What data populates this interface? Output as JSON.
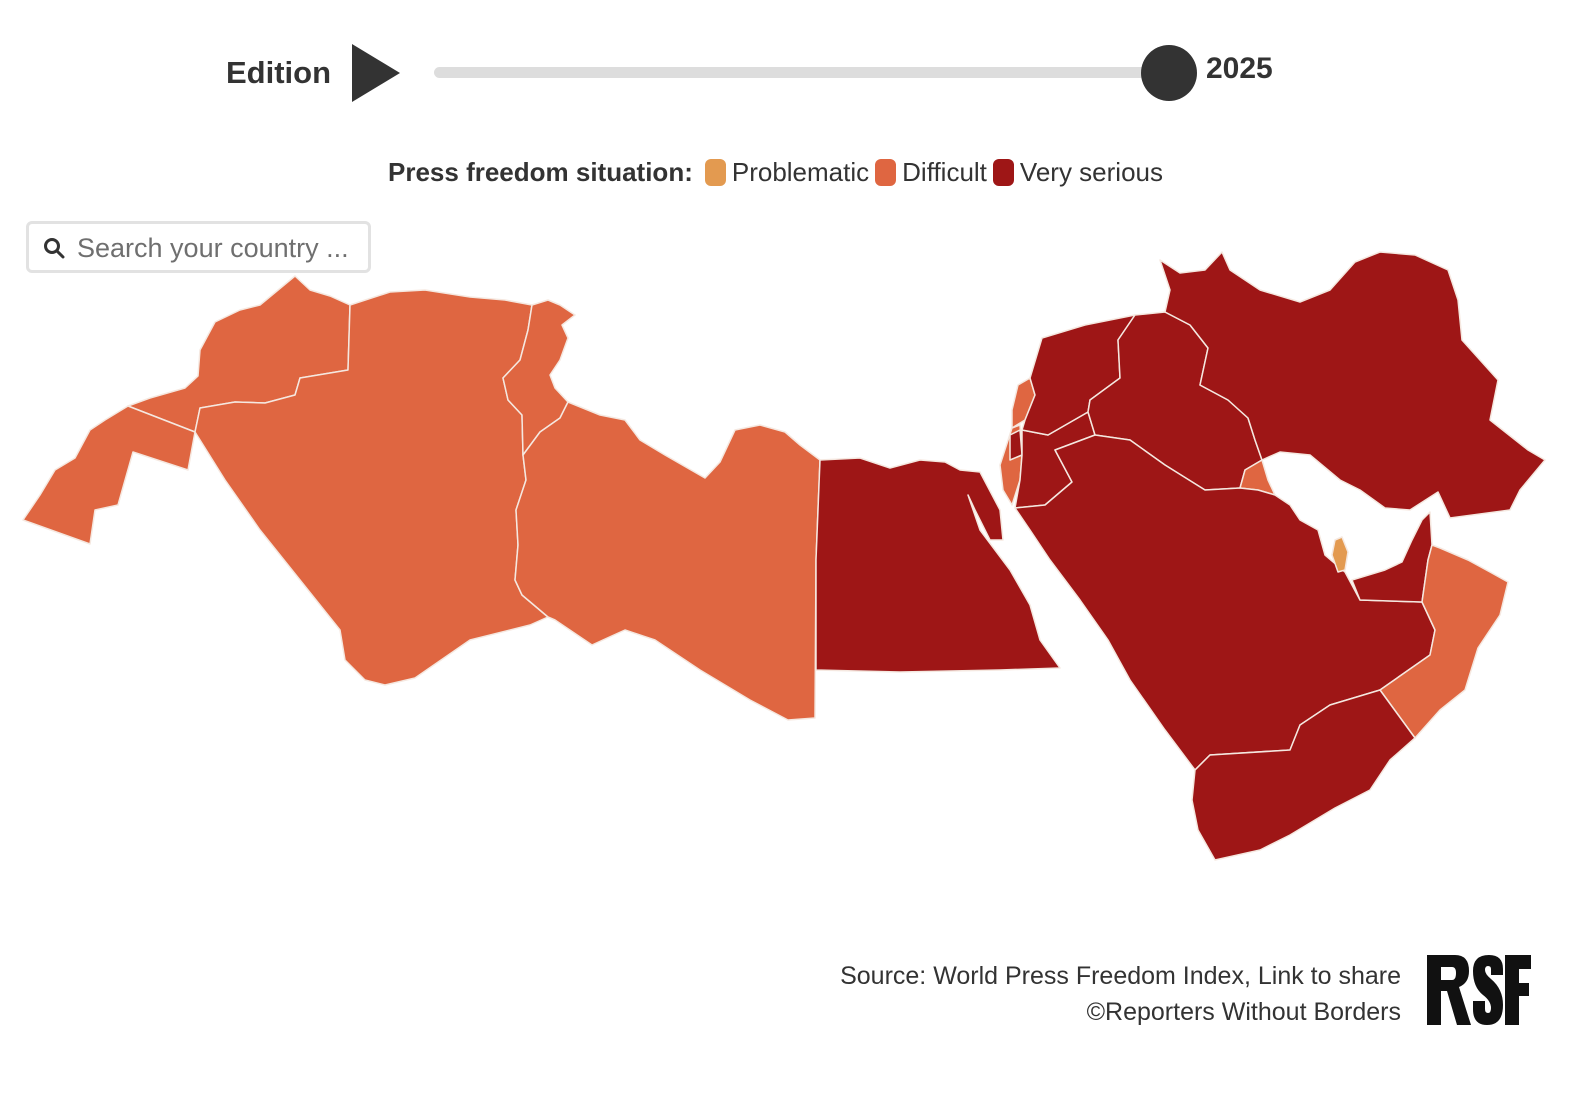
{
  "controls": {
    "edition_label": "Edition",
    "year": "2025",
    "play_icon": "play-icon"
  },
  "legend": {
    "title": "Press freedom situation:",
    "items": [
      {
        "label": "Problematic",
        "color": "#e39a50"
      },
      {
        "label": "Difficult",
        "color": "#df6641"
      },
      {
        "label": "Very serious",
        "color": "#9e1616"
      }
    ]
  },
  "search": {
    "placeholder": "Search your country ...",
    "icon": "search-icon"
  },
  "source": {
    "line1": "Source: World Press Freedom Index, Link to share",
    "line2": "©Reporters Without Borders",
    "logo_text": "RSF"
  },
  "map": {
    "regions": [
      {
        "id": "morocco",
        "status": "Difficult"
      },
      {
        "id": "western-sahara",
        "status": "Difficult"
      },
      {
        "id": "algeria",
        "status": "Difficult"
      },
      {
        "id": "tunisia",
        "status": "Difficult"
      },
      {
        "id": "libya",
        "status": "Difficult"
      },
      {
        "id": "egypt",
        "status": "Very serious"
      },
      {
        "id": "israel",
        "status": "Difficult"
      },
      {
        "id": "lebanon",
        "status": "Difficult"
      },
      {
        "id": "palestine",
        "status": "Very serious"
      },
      {
        "id": "jordan",
        "status": "Very serious"
      },
      {
        "id": "syria",
        "status": "Very serious"
      },
      {
        "id": "iraq",
        "status": "Very serious"
      },
      {
        "id": "iran",
        "status": "Very serious"
      },
      {
        "id": "saudi-arabia",
        "status": "Very serious"
      },
      {
        "id": "kuwait",
        "status": "Difficult"
      },
      {
        "id": "qatar",
        "status": "Problematic"
      },
      {
        "id": "uae",
        "status": "Very serious"
      },
      {
        "id": "oman",
        "status": "Difficult"
      },
      {
        "id": "yemen",
        "status": "Very serious"
      }
    ]
  }
}
